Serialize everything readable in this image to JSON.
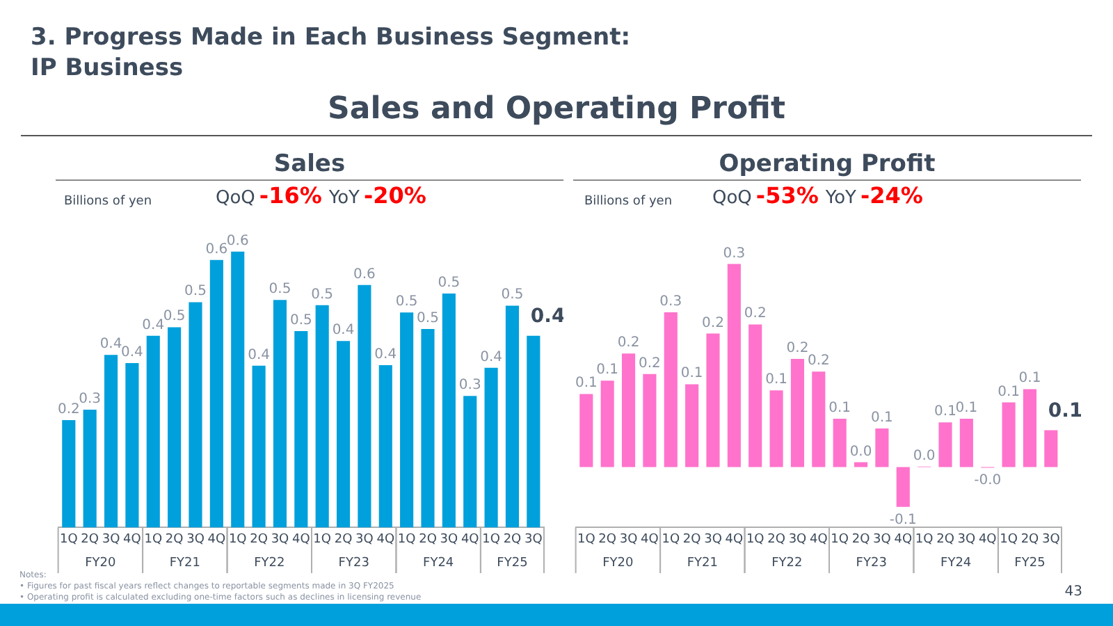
{
  "chart_data": [
    {
      "type": "bar",
      "title": "Sales",
      "ylabel": "Billions of yen",
      "color": "#00a0dc",
      "tick_labels": "x",
      "categories": [
        "1Q",
        "2Q",
        "3Q",
        "4Q",
        "1Q",
        "2Q",
        "3Q",
        "4Q",
        "1Q",
        "2Q",
        "3Q",
        "4Q",
        "1Q",
        "2Q",
        "3Q",
        "4Q",
        "1Q",
        "2Q",
        "3Q",
        "4Q",
        "1Q",
        "2Q",
        "3Q"
      ],
      "values": [
        0.249,
        0.273,
        0.4,
        0.381,
        0.444,
        0.464,
        0.522,
        0.62,
        0.639,
        0.375,
        0.527,
        0.455,
        0.515,
        0.432,
        0.562,
        0.376,
        0.498,
        0.46,
        0.542,
        0.305,
        0.37,
        0.514,
        0.444
      ],
      "value_labels": [
        "0.2",
        "0.3",
        "0.4",
        "0.4",
        "0.4",
        "0.5",
        "0.5",
        "0.6",
        "0.6",
        "0.4",
        "0.5",
        "0.5",
        "0.5",
        "0.4",
        "0.6",
        "0.4",
        "0.5",
        "0.5",
        "0.5",
        "0.3",
        "0.4",
        "0.5",
        "0.4"
      ],
      "annotations": [
        "3. Progress Made in Each Business Segment:\nIP Business",
        "Sales and Operating Profit",
        "FY20",
        "FY21",
        "FY22",
        "FY23",
        "FY24",
        "FY25",
        "QoQ",
        "-16%",
        "YoY",
        "-20%",
        "Notes:",
        "• Figures for past fiscal years reflect changes to reportable segments made in 3Q FY2025",
        "• Operating profit is calculated excluding one-time factors such as declines in licensing revenue",
        "43"
      ]
    },
    {
      "type": "bar",
      "title": "Operating Profit",
      "ylabel": "Billions of yen",
      "color": "#ff73cc",
      "tick_labels": "x",
      "categories": [
        "1Q",
        "2Q",
        "3Q",
        "4Q",
        "1Q",
        "2Q",
        "3Q",
        "4Q",
        "1Q",
        "2Q",
        "3Q",
        "4Q",
        "1Q",
        "2Q",
        "3Q",
        "4Q",
        "1Q",
        "2Q",
        "3Q",
        "4Q",
        "1Q",
        "2Q",
        "3Q"
      ],
      "values": [
        0.121,
        0.143,
        0.188,
        0.154,
        0.256,
        0.137,
        0.221,
        0.336,
        0.236,
        0.127,
        0.179,
        0.158,
        0.08,
        0.008,
        0.064,
        -0.066,
        0.001,
        0.074,
        0.08,
        -0.001,
        0.107,
        0.129,
        0.061
      ],
      "value_labels": [
        "0.1",
        "0.1",
        "0.2",
        "0.2",
        "0.3",
        "0.1",
        "0.2",
        "0.3",
        "0.2",
        "0.1",
        "0.2",
        "0.2",
        "0.1",
        "0.0",
        "0.1",
        "-0.1",
        "0.0",
        "0.1",
        "0.1",
        "-0.0",
        "0.1",
        "0.1",
        "0.1"
      ],
      "annotations": [
        "FY20",
        "FY21",
        "FY22",
        "FY23",
        "FY24",
        "FY25",
        "QoQ",
        "-53%",
        "YoY",
        "-24%"
      ]
    }
  ]
}
